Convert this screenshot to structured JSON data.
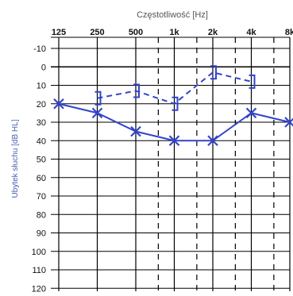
{
  "chart_data": {
    "type": "line",
    "title": "Częstotliwość [Hz]",
    "xlabel": "Częstotliwość [Hz]",
    "ylabel": "Ubytek słuchu [dB HL]",
    "x_scale": "log",
    "x_ticks": [
      {
        "value": 125,
        "label": "125"
      },
      {
        "value": 250,
        "label": "250"
      },
      {
        "value": 500,
        "label": "500"
      },
      {
        "value": 1000,
        "label": "1k"
      },
      {
        "value": 2000,
        "label": "2k"
      },
      {
        "value": 4000,
        "label": "4k"
      },
      {
        "value": 8000,
        "label": "8k"
      }
    ],
    "x_intermediate_dashed": [
      750,
      1500,
      3000,
      6000
    ],
    "y_ticks": [
      -10,
      0,
      10,
      20,
      30,
      40,
      50,
      60,
      70,
      80,
      90,
      100,
      110,
      120
    ],
    "ylim": [
      -10,
      120
    ],
    "y_inverted": true,
    "grid": true,
    "colors": {
      "series": "#3344cc",
      "grid": "#000000"
    },
    "series": [
      {
        "name": "",
        "style": "solid",
        "marker": "x",
        "x": [
          125,
          250,
          500,
          1000,
          2000,
          4000,
          8000
        ],
        "y": [
          20,
          25,
          35,
          40,
          40,
          25,
          30
        ]
      },
      {
        "name": "",
        "style": "dashed",
        "marker": "bracket",
        "x": [
          250,
          500,
          1000,
          2000,
          4000
        ],
        "y": [
          17,
          13,
          20,
          3,
          8
        ]
      }
    ]
  }
}
